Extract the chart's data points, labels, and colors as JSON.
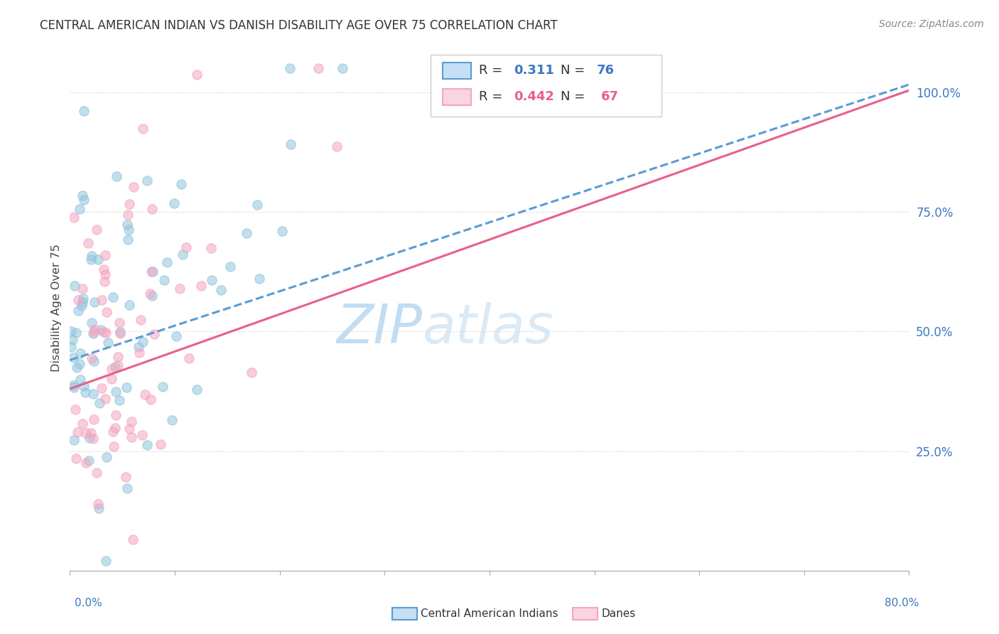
{
  "title": "CENTRAL AMERICAN INDIAN VS DANISH DISABILITY AGE OVER 75 CORRELATION CHART",
  "source": "Source: ZipAtlas.com",
  "ylabel": "Disability Age Over 75",
  "xlim": [
    0.0,
    0.8
  ],
  "ylim": [
    0.0,
    1.1
  ],
  "ytick_vals": [
    0.25,
    0.5,
    0.75,
    1.0
  ],
  "ytick_labels": [
    "25.0%",
    "50.0%",
    "75.0%",
    "100.0%"
  ],
  "color_blue": "#92c5de",
  "color_pink": "#f4a6c0",
  "color_blue_line": "#5b9bd5",
  "color_pink_line": "#e8608a",
  "watermark_zip": "ZIP",
  "watermark_atlas": "atlas",
  "blue_r": 0.311,
  "pink_r": 0.442,
  "blue_n": 76,
  "pink_n": 67,
  "blue_intercept": 0.44,
  "blue_slope": 0.72,
  "pink_intercept": 0.38,
  "pink_slope": 0.78,
  "seed_blue": 42,
  "seed_pink": 123
}
